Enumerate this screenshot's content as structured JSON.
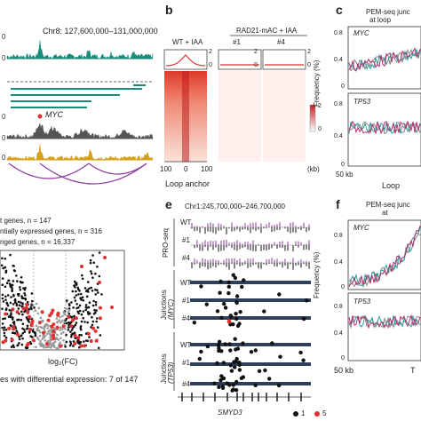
{
  "panel_a": {
    "locus": "Chr8: 127,600,000–131,000,000",
    "gene_label": "MYC",
    "colors": {
      "track1": "#1a8a7a",
      "track2": "#555555",
      "track3": "#d4a017",
      "arcs": "#8e3c9e",
      "bars": "#1a8a7a",
      "gene": "#e03030"
    }
  },
  "panel_b": {
    "letter": "b",
    "group_left": "WT + IAA",
    "group_right": "RAD21-mAC + IAA",
    "sub1": "#1",
    "sub2": "#4",
    "scale_max": "2",
    "scale_min": "0",
    "colorbar_max": "2",
    "colorbar_min": "0",
    "x_left": "100",
    "x_mid": "0",
    "x_right": "100",
    "x_unit": "(kb)",
    "xlabel": "Loop anchor"
  },
  "panel_c": {
    "letter": "c",
    "title_line1": "PEM-seq junc",
    "title_line2": "at loop",
    "ylabel": "Frequency (%)",
    "gene1": "MYC",
    "gene2": "TP53",
    "y1_ticks": [
      "0.8",
      "0.4",
      "0"
    ],
    "y2_ticks": [
      "0.8",
      "0.4",
      "0"
    ],
    "x_left": "50 kb",
    "xlabel": "Loop",
    "colors": {
      "wt": "#888888",
      "c1": "#2a9d9a",
      "c4": "#b5306e"
    }
  },
  "panel_d": {
    "legend_line1": "t genes, n = 147",
    "legend_line2": "ntially expressed genes, n = 316",
    "legend_line3": "nged genes, n = 16,337",
    "xlabel": "log₂(FC)",
    "footer": "es with differential expression: 7 of 147"
  },
  "panel_e": {
    "letter": "e",
    "locus": "Chr1:245,700,000–246,700,000",
    "group1": "PRO-seq",
    "group2": "Junctions",
    "group2_gene": "(MYC)",
    "group3": "Junctions",
    "group3_gene": "(TP53)",
    "rows": [
      "WT",
      "#1",
      "#4"
    ],
    "gene": "SMYD3",
    "legend_1": "1",
    "legend_5": "5"
  },
  "panel_f": {
    "letter": "f",
    "title_line1": "PEM-seq junc",
    "title_line2": "at",
    "ylabel": "Frequency (%)",
    "gene1": "MYC",
    "gene2": "TP53",
    "y1_ticks": [
      "0.8",
      "0.4",
      "0"
    ],
    "y2_ticks": [
      "0.8",
      "0.4",
      "0"
    ],
    "x_left": "50 kb",
    "x_right": "T"
  }
}
